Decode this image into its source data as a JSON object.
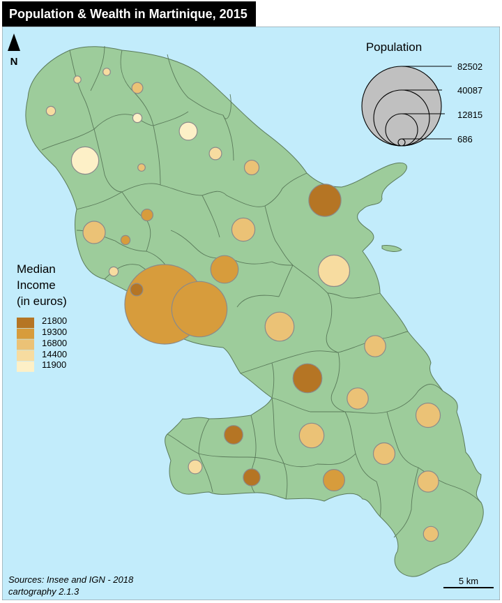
{
  "title": "Population & Wealth in Martinique, 2015",
  "north_label": "N",
  "colors": {
    "sea": "#c2ecfb",
    "land": "#9dcc9b",
    "border": "#5a7a5a",
    "bubble_stroke": "#8a8a8a"
  },
  "population_legend": {
    "title": "Population",
    "values": [
      "82502",
      "40087",
      "12815",
      "686"
    ],
    "fill": "#c0c0c0"
  },
  "income_legend": {
    "title_lines": [
      "Median",
      "Income",
      "(in euros)"
    ],
    "classes": [
      {
        "label": "21800",
        "color": "#b57524"
      },
      {
        "label": "19300",
        "color": "#d79c3c"
      },
      {
        "label": "16800",
        "color": "#ebc276"
      },
      {
        "label": "14400",
        "color": "#f7dca0"
      },
      {
        "label": "11900",
        "color": "#fdf0c7"
      }
    ]
  },
  "communes": [
    {
      "population": 686,
      "income_class": 3
    },
    {
      "population": 700,
      "income_class": 3
    },
    {
      "population": 1600,
      "income_class": 2
    },
    {
      "population": 1100,
      "income_class": 3
    },
    {
      "population": 1100,
      "income_class": 4
    },
    {
      "population": 4200,
      "income_class": 4
    },
    {
      "population": 2000,
      "income_class": 3
    },
    {
      "population": 2800,
      "income_class": 2
    },
    {
      "population": 9800,
      "income_class": 4
    },
    {
      "population": 700,
      "income_class": 2
    },
    {
      "population": 1800,
      "income_class": 1
    },
    {
      "population": 6500,
      "income_class": 2
    },
    {
      "population": 1100,
      "income_class": 1
    },
    {
      "population": 7000,
      "income_class": 2
    },
    {
      "population": 1100,
      "income_class": 3
    },
    {
      "population": 2000,
      "income_class": 0
    },
    {
      "population": 10000,
      "income_class": 1
    },
    {
      "population": 12815,
      "income_class": 3
    },
    {
      "population": 13500,
      "income_class": 0
    },
    {
      "population": 82502,
      "income_class": 1
    },
    {
      "population": 40087,
      "income_class": 1
    },
    {
      "population": 11000,
      "income_class": 2
    },
    {
      "population": 11000,
      "income_class": 0
    },
    {
      "population": 5900,
      "income_class": 2
    },
    {
      "population": 5900,
      "income_class": 2
    },
    {
      "population": 7800,
      "income_class": 2
    },
    {
      "population": 4500,
      "income_class": 0
    },
    {
      "population": 8000,
      "income_class": 2
    },
    {
      "population": 6100,
      "income_class": 2
    },
    {
      "population": 2500,
      "income_class": 3
    },
    {
      "population": 3700,
      "income_class": 0
    },
    {
      "population": 6000,
      "income_class": 1
    },
    {
      "population": 5800,
      "income_class": 2
    },
    {
      "population": 2900,
      "income_class": 2
    }
  ],
  "sources": [
    "Sources: Insee and IGN - 2018",
    "cartography 2.1.3"
  ],
  "scale_bar_label": "5 km"
}
